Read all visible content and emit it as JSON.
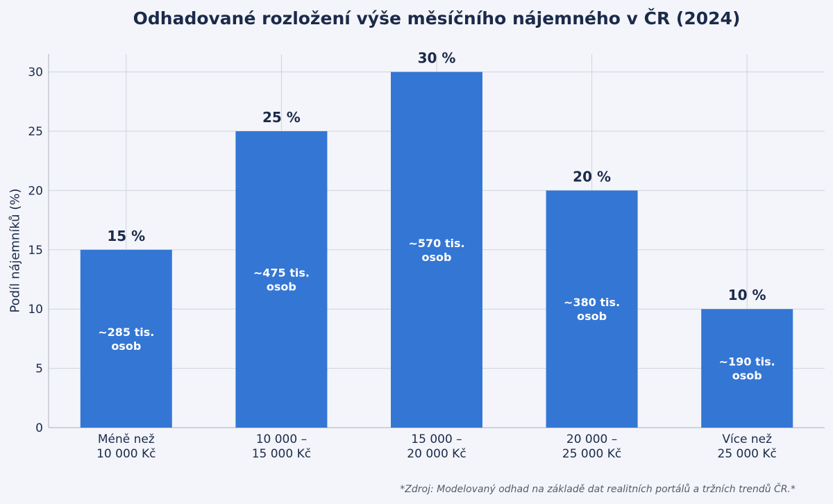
{
  "chart_data": {
    "type": "bar",
    "title": "Odhadované rozložení výše měsíčního nájemného v ČR (2024)",
    "xlabel": "",
    "ylabel": "Podíl nájemníků (%)",
    "ylim": [
      0,
      31.5
    ],
    "yticks": [
      0,
      5,
      10,
      15,
      20,
      25,
      30
    ],
    "grid": true,
    "categories": [
      [
        "Méně než",
        "10 000 Kč"
      ],
      [
        "10 000 –",
        "15 000 Kč"
      ],
      [
        "15 000 –",
        "20 000 Kč"
      ],
      [
        "20 000 –",
        "25 000 Kč"
      ],
      [
        "Více než",
        "25 000 Kč"
      ]
    ],
    "values": [
      15,
      25,
      30,
      20,
      10
    ],
    "value_labels": [
      "15 %",
      "25 %",
      "30 %",
      "20 %",
      "10 %"
    ],
    "inner_labels": [
      [
        "~285 tis.",
        "osob"
      ],
      [
        "~475 tis.",
        "osob"
      ],
      [
        "~570 tis.",
        "osob"
      ],
      [
        "~380 tis.",
        "osob"
      ],
      [
        "~190 tis.",
        "osob"
      ]
    ],
    "bar_color": "#3476d4",
    "source_note": "*Zdroj: Modelovaný odhad na základě dat realitních portálů a tržních trendů ČR.*"
  }
}
